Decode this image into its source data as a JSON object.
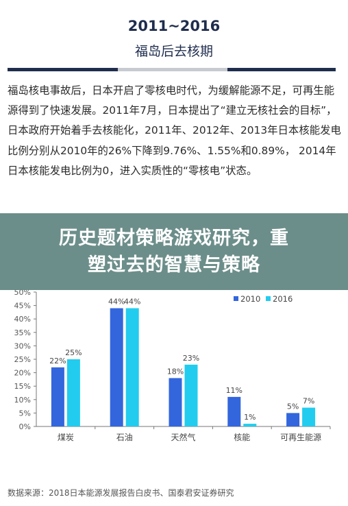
{
  "header": {
    "years": "2011~2016",
    "subtitle": "福岛后去核期"
  },
  "paragraph": "福岛核电事故后，日本开启了零核电时代，为缓解能源不足，可再生能源得到了快速发展。2011年7月，日本提出了“建立无核社会的目标”，日本政府开始着手去核能化，2011年、2012年、2013年日本核能发电比例分别从2010年的26%下降到9.76%、1.55%和0.89%， 2014年日本核能发电比例为0，进入实质性的“零核电”状态。",
  "banner": {
    "line1": "历史题材策略游戏研究，重",
    "line2": "塑过去的智慧与策略"
  },
  "source": "数据来源：2018日本能源发展报告白皮书、国泰君安证券研究",
  "chart_data": {
    "type": "bar",
    "title": "",
    "categories": [
      "煤炭",
      "石油",
      "天然气",
      "核能",
      "可再生能源"
    ],
    "series": [
      {
        "name": "2010",
        "values": [
          22,
          44,
          18,
          11,
          5
        ],
        "labels": [
          "22%",
          "44%",
          "18%",
          "11%",
          "5%"
        ],
        "color": "#3366dd"
      },
      {
        "name": "2016",
        "values": [
          25,
          44,
          23,
          1,
          7
        ],
        "labels": [
          "25%",
          "44%",
          "23%",
          "1%",
          "7%"
        ],
        "color": "#22ccee"
      }
    ],
    "yticks": [
      "0%",
      "5%",
      "10%",
      "15%",
      "20%",
      "25%",
      "30%",
      "35%",
      "40%",
      "45%",
      "50%"
    ],
    "ylim": [
      0,
      50
    ],
    "legend_position": "top-right",
    "grid": false
  }
}
